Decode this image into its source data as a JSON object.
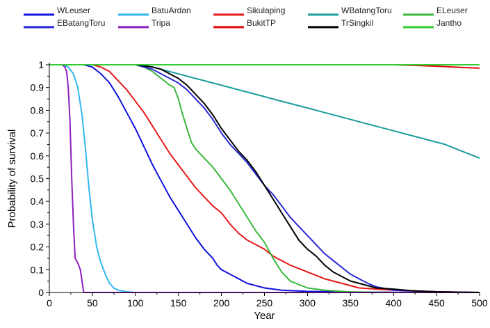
{
  "chart_data": {
    "type": "line",
    "xlabel": "Year",
    "ylabel": "Probability of survival",
    "xlim": [
      0,
      500
    ],
    "ylim": [
      0,
      1
    ],
    "xticks": [
      0,
      50,
      100,
      150,
      200,
      250,
      300,
      350,
      400,
      450,
      500
    ],
    "yticks": [
      0,
      0.1,
      0.2,
      0.3,
      0.4,
      0.5,
      0.6,
      0.7,
      0.8,
      0.9,
      1
    ],
    "grid": false,
    "legend_position": "top",
    "series": [
      {
        "name": "WLeuser",
        "color": "#1010e0",
        "x": [
          0,
          40,
          50,
          60,
          70,
          80,
          90,
          100,
          110,
          120,
          130,
          140,
          150,
          160,
          170,
          180,
          190,
          195,
          200,
          210,
          220,
          230,
          240,
          250,
          270,
          300,
          350,
          400,
          500
        ],
        "y": [
          1,
          1,
          0.99,
          0.96,
          0.92,
          0.86,
          0.79,
          0.72,
          0.64,
          0.56,
          0.49,
          0.42,
          0.36,
          0.3,
          0.24,
          0.19,
          0.15,
          0.12,
          0.1,
          0.08,
          0.06,
          0.04,
          0.03,
          0.02,
          0.01,
          0.005,
          0.002,
          0.001,
          0
        ]
      },
      {
        "name": "BatuArdan",
        "color": "#2fb8ee",
        "x": [
          0,
          15,
          22,
          28,
          33,
          38,
          42,
          46,
          50,
          55,
          60,
          65,
          70,
          75,
          80,
          90,
          100,
          500
        ],
        "y": [
          1,
          1,
          0.99,
          0.96,
          0.9,
          0.78,
          0.63,
          0.46,
          0.32,
          0.2,
          0.13,
          0.08,
          0.04,
          0.02,
          0.01,
          0.003,
          0,
          0
        ]
      },
      {
        "name": "Sikulaping",
        "color": "#e81818",
        "x": [
          0,
          50,
          60,
          70,
          80,
          90,
          100,
          110,
          120,
          130,
          140,
          150,
          160,
          170,
          180,
          190,
          200,
          210,
          220,
          230,
          240,
          250,
          260,
          270,
          280,
          300,
          320,
          340,
          360,
          380,
          400,
          450,
          500
        ],
        "y": [
          1,
          1,
          0.99,
          0.97,
          0.93,
          0.89,
          0.84,
          0.79,
          0.73,
          0.67,
          0.61,
          0.56,
          0.51,
          0.46,
          0.42,
          0.38,
          0.35,
          0.3,
          0.26,
          0.23,
          0.21,
          0.19,
          0.16,
          0.14,
          0.12,
          0.09,
          0.06,
          0.04,
          0.02,
          0.015,
          0.01,
          0.003,
          0
        ]
      },
      {
        "name": "WBatangToru",
        "color": "#1a9e9a",
        "x": [
          0,
          100,
          120,
          140,
          160,
          180,
          200,
          220,
          240,
          260,
          280,
          300,
          320,
          340,
          360,
          380,
          400,
          420,
          440,
          460,
          480,
          500
        ],
        "y": [
          1,
          1,
          0.99,
          0.97,
          0.95,
          0.93,
          0.91,
          0.89,
          0.87,
          0.85,
          0.83,
          0.81,
          0.79,
          0.77,
          0.75,
          0.73,
          0.71,
          0.69,
          0.67,
          0.65,
          0.62,
          0.59
        ]
      },
      {
        "name": "ELeuser",
        "color": "#3ab83a",
        "x": [
          0,
          100,
          110,
          120,
          130,
          140,
          145,
          150,
          155,
          160,
          165,
          170,
          180,
          190,
          200,
          210,
          220,
          230,
          240,
          250,
          260,
          270,
          280,
          300,
          320,
          350,
          400,
          500
        ],
        "y": [
          1,
          1,
          0.99,
          0.97,
          0.94,
          0.91,
          0.9,
          0.85,
          0.78,
          0.72,
          0.66,
          0.63,
          0.59,
          0.55,
          0.5,
          0.45,
          0.39,
          0.33,
          0.27,
          0.22,
          0.15,
          0.09,
          0.05,
          0.02,
          0.01,
          0.002,
          0,
          0
        ]
      },
      {
        "name": "EBatangToru",
        "color": "#2828d8",
        "x": [
          0,
          100,
          110,
          120,
          130,
          140,
          150,
          160,
          170,
          180,
          190,
          200,
          210,
          220,
          230,
          240,
          250,
          260,
          270,
          280,
          290,
          300,
          310,
          320,
          330,
          340,
          350,
          360,
          370,
          380,
          400,
          450,
          500
        ],
        "y": [
          1,
          1,
          0.99,
          0.98,
          0.96,
          0.94,
          0.92,
          0.89,
          0.85,
          0.81,
          0.76,
          0.7,
          0.65,
          0.61,
          0.57,
          0.52,
          0.47,
          0.43,
          0.38,
          0.33,
          0.29,
          0.25,
          0.21,
          0.17,
          0.14,
          0.11,
          0.08,
          0.06,
          0.04,
          0.025,
          0.01,
          0.003,
          0
        ]
      },
      {
        "name": "Tripa",
        "color": "#8e1fbf",
        "x": [
          0,
          15,
          18,
          20,
          22,
          24,
          26,
          28,
          30,
          33,
          36,
          38,
          40,
          500
        ],
        "y": [
          1,
          1,
          0.99,
          0.97,
          0.9,
          0.75,
          0.5,
          0.3,
          0.15,
          0.13,
          0.1,
          0.05,
          0,
          0
        ]
      },
      {
        "name": "BukitTP",
        "color": "#e00808",
        "x": [
          0,
          250,
          300,
          350,
          400,
          420,
          440,
          460,
          480,
          500
        ],
        "y": [
          1,
          1,
          1,
          1,
          1,
          0.998,
          0.995,
          0.992,
          0.988,
          0.985
        ]
      },
      {
        "name": "TrSingkil",
        "color": "#000000",
        "x": [
          0,
          100,
          110,
          120,
          130,
          140,
          150,
          160,
          170,
          180,
          190,
          200,
          210,
          220,
          230,
          240,
          250,
          260,
          270,
          280,
          290,
          300,
          310,
          320,
          330,
          340,
          350,
          360,
          380,
          400,
          420,
          450,
          500
        ],
        "y": [
          1,
          1,
          0.995,
          0.99,
          0.98,
          0.96,
          0.94,
          0.91,
          0.87,
          0.83,
          0.78,
          0.72,
          0.67,
          0.62,
          0.58,
          0.53,
          0.47,
          0.41,
          0.35,
          0.29,
          0.23,
          0.19,
          0.16,
          0.12,
          0.09,
          0.07,
          0.05,
          0.04,
          0.02,
          0.015,
          0.008,
          0.003,
          0
        ]
      },
      {
        "name": "Jantho",
        "color": "#33cc33",
        "x": [
          0,
          500
        ],
        "y": [
          1,
          1
        ]
      }
    ]
  }
}
